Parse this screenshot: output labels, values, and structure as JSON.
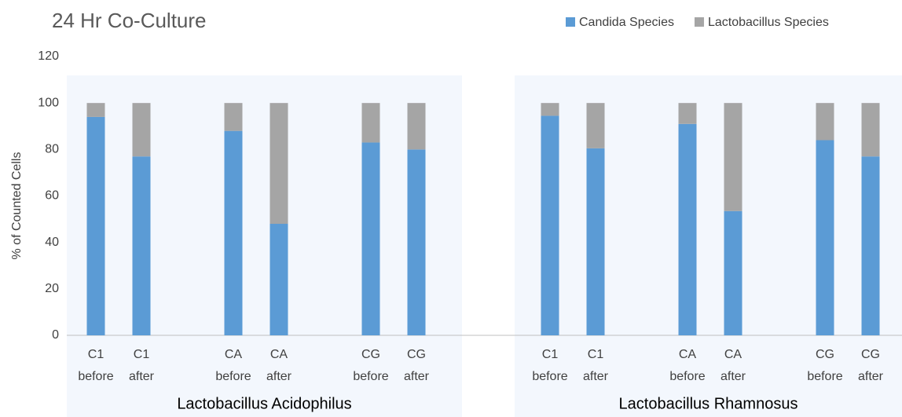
{
  "chart_data": {
    "type": "stacked_bar",
    "title": "24 Hr Co-Culture",
    "y_label": "% of Counted Cells",
    "groups": [
      {
        "label": "Lactobacillus Acidophilus",
        "categories": [
          [
            "C1",
            "before"
          ],
          [
            "C1",
            "after"
          ],
          [
            "CA",
            "before"
          ],
          [
            "CA",
            "after"
          ],
          [
            "CG",
            "before"
          ],
          [
            "CG",
            "after"
          ]
        ]
      },
      {
        "label": "Lactobacillus Rhamnosus",
        "categories": [
          [
            "C1",
            "before"
          ],
          [
            "C1",
            "after"
          ],
          [
            "CA",
            "before"
          ],
          [
            "CA",
            "after"
          ],
          [
            "CG",
            "before"
          ],
          [
            "CG",
            "after"
          ]
        ]
      }
    ],
    "series": [
      {
        "name": "Candida Species",
        "color": "#5b9bd5",
        "values": [
          94,
          77,
          88,
          48,
          83,
          80,
          94.5,
          80.5,
          91,
          53.5,
          84,
          77
        ]
      },
      {
        "name": "Lactobacillus Species",
        "color": "#a5a5a5",
        "values": [
          6,
          23,
          12,
          52,
          17,
          20,
          5.5,
          19.5,
          9,
          46.5,
          16,
          23
        ]
      }
    ],
    "ylim": [
      0,
      120
    ],
    "yticks": [
      0,
      20,
      40,
      60,
      80,
      100,
      120
    ],
    "grid": false,
    "legend": "top-right"
  }
}
